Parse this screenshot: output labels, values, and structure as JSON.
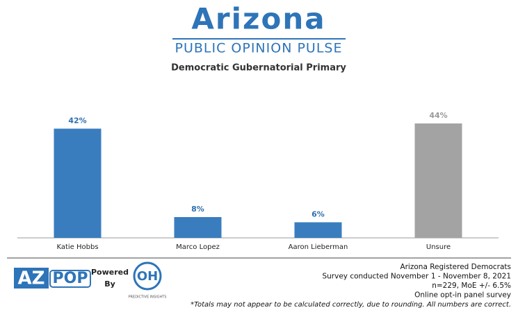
{
  "header": {
    "logo_title": "Arizona",
    "logo_subtitle": "PUBLIC OPINION PULSE"
  },
  "chart_data": {
    "type": "bar",
    "title": "Democratic Gubernatorial Primary",
    "categories": [
      "Katie Hobbs",
      "Marco Lopez",
      "Aaron Lieberman",
      "Unsure"
    ],
    "values": [
      42,
      8,
      6,
      44
    ],
    "value_labels": [
      "42%",
      "8%",
      "6%",
      "44%"
    ],
    "colors": [
      "#3a7dbf",
      "#3a7dbf",
      "#3a7dbf",
      "#a3a3a3"
    ],
    "label_colors": [
      "#2e6fae",
      "#2e6fae",
      "#2e6fae",
      "#9a9a9a"
    ]
  },
  "footer": {
    "logo_left_a": "AZ",
    "logo_left_b": "POP",
    "powered": "Powered",
    "by": "By",
    "logo_right": "OH",
    "logo_right_sub": "PREDICTIVE INSIGHTS",
    "notes": [
      "Arizona Registered Democrats",
      "Survey conducted November 1 - November 8, 2021",
      "n=229, MoE +/- 6.5%",
      "Online opt-in panel survey",
      "*Totals may not appear to be calculated correctly, due to rounding. All numbers are correct."
    ]
  }
}
